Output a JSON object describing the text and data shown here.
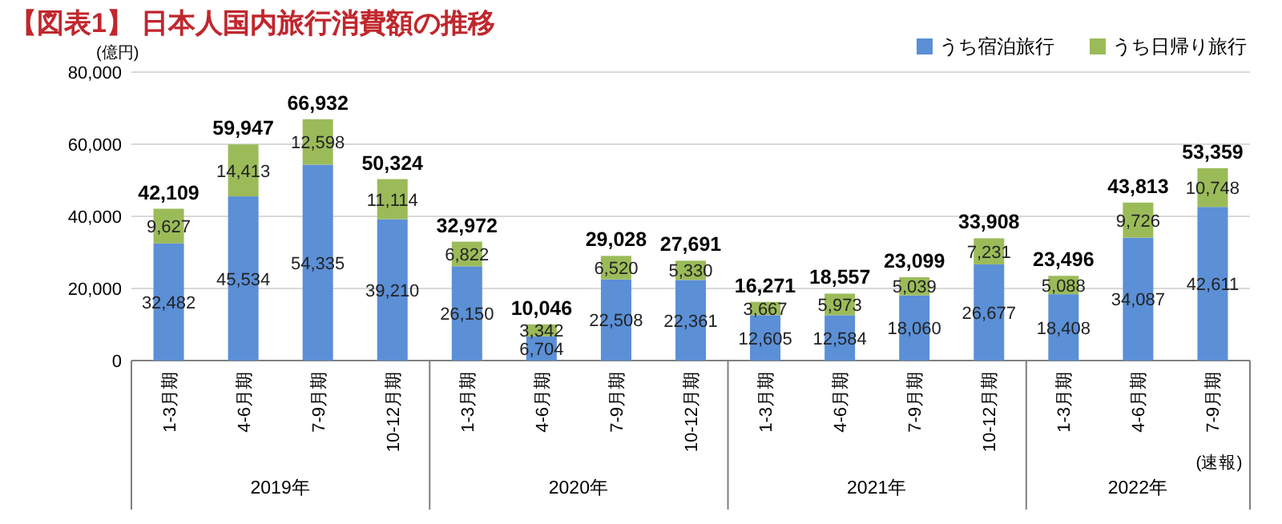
{
  "chart_data": {
    "type": "bar",
    "stacked": true,
    "title": "【図表1】 日本人国内旅行消費額の推移",
    "ylabel": "(億円)",
    "categories": [
      "1-3月期",
      "4-6月期",
      "7-9月期",
      "10-12月期",
      "1-3月期",
      "4-6月期",
      "7-9月期",
      "10-12月期",
      "1-3月期",
      "4-6月期",
      "7-9月期",
      "10-12月期",
      "1-3月期",
      "4-6月期",
      "7-9月期"
    ],
    "series": [
      {
        "name": "うち宿泊旅行",
        "color": "#5b8fd6",
        "values": [
          32482,
          45534,
          54335,
          39210,
          26150,
          6704,
          22508,
          22361,
          12605,
          12584,
          18060,
          26677,
          18408,
          34087,
          42611
        ],
        "value_labels": [
          "32,482",
          "45,534",
          "54,335",
          "39,210",
          "26,150",
          "6,704",
          "22,508",
          "22,361",
          "12,605",
          "12,584",
          "18,060",
          "26,677",
          "18,408",
          "34,087",
          "42,611"
        ]
      },
      {
        "name": "うち日帰り旅行",
        "color": "#9bbb59",
        "values": [
          9627,
          14413,
          12598,
          11114,
          6822,
          3342,
          6520,
          5330,
          3667,
          5973,
          5039,
          7231,
          5088,
          9726,
          10748
        ],
        "value_labels": [
          "9,627",
          "14,413",
          "12,598",
          "11,114",
          "6,822",
          "3,342",
          "6,520",
          "5,330",
          "3,667",
          "5,973",
          "5,039",
          "7,231",
          "5,088",
          "9,726",
          "10,748"
        ]
      }
    ],
    "totals": [
      "42,109",
      "59,947",
      "66,932",
      "50,324",
      "32,972",
      "10,046",
      "29,028",
      "27,691",
      "16,271",
      "18,557",
      "23,099",
      "33,908",
      "23,496",
      "43,813",
      "53,359"
    ],
    "ylim": [
      0,
      80000
    ],
    "yticks": [
      {
        "value": 0,
        "label": "0"
      },
      {
        "value": 20000,
        "label": "20,000"
      },
      {
        "value": 40000,
        "label": "40,000"
      },
      {
        "value": 60000,
        "label": "60,000"
      },
      {
        "value": 80000,
        "label": "80,000"
      }
    ],
    "grid": "y",
    "legend": "top right",
    "annotations": [
      "2019年",
      "2020年",
      "2021年",
      "2022年",
      "(速報)"
    ]
  }
}
